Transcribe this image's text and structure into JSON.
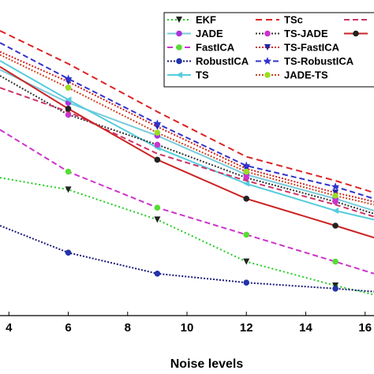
{
  "chart_data": {
    "type": "line",
    "title": "",
    "xlabel": "Noise levels",
    "ylabel": "",
    "xlim": [
      3.7,
      16.3
    ],
    "ylim": [
      0,
      1
    ],
    "x_ticks": [
      "4",
      "6",
      "8",
      "10",
      "12",
      "14",
      "16"
    ],
    "grid": false,
    "legend_position": "top-right",
    "series": [
      {
        "name": "EKF",
        "color": "#22cc22",
        "dash": "2,3",
        "marker": "tri-down",
        "marker_color": "#222222",
        "x": [
          3.7,
          6,
          9,
          12,
          15,
          16.3
        ],
        "y": [
          0.46,
          0.42,
          0.32,
          0.18,
          0.1,
          0.07
        ]
      },
      {
        "name": "JADE",
        "color": "#77ccdd",
        "dash": "",
        "marker": "circle",
        "marker_color": "#aa33dd",
        "x": [
          3.7,
          6,
          9,
          12,
          15,
          16.3
        ],
        "y": [
          0.82,
          0.71,
          0.6,
          0.47,
          0.39,
          0.35
        ]
      },
      {
        "name": "FastICA",
        "color": "#cc33cc",
        "dash": "7,4",
        "marker": "circle",
        "marker_color": "#55dd33",
        "x": [
          3.7,
          6,
          9,
          12,
          15,
          16.3
        ],
        "y": [
          0.62,
          0.48,
          0.36,
          0.27,
          0.18,
          0.14
        ]
      },
      {
        "name": "RobustICA",
        "color": "#1a1a7a",
        "dash": "2,2",
        "marker": "circle",
        "marker_color": "#2233aa",
        "x": [
          3.7,
          6,
          9,
          12,
          15,
          16.3
        ],
        "y": [
          0.3,
          0.21,
          0.14,
          0.11,
          0.09,
          0.08
        ]
      },
      {
        "name": "TS",
        "color": "#55ccdd",
        "dash": "",
        "marker": "tri-left",
        "marker_color": "#55ccdd",
        "x": [
          3.7,
          6,
          9,
          12,
          15,
          16.3
        ],
        "y": [
          0.85,
          0.72,
          0.56,
          0.44,
          0.35,
          0.32
        ]
      },
      {
        "name": "TSc",
        "color": "#dd2222",
        "dash": "8,5",
        "marker": "none",
        "marker_color": "#dd2222",
        "x": [
          3.7,
          6,
          9,
          12,
          15,
          16.3
        ],
        "y": [
          0.95,
          0.84,
          0.68,
          0.53,
          0.45,
          0.41
        ]
      },
      {
        "name": "TS-JADE",
        "color": "#333333",
        "dash": "2,2",
        "marker": "circle",
        "marker_color": "#cc33cc",
        "x": [
          3.7,
          6,
          9,
          12,
          15,
          16.3
        ],
        "y": [
          0.8,
          0.67,
          0.57,
          0.46,
          0.38,
          0.34
        ]
      },
      {
        "name": "TS-FastICA",
        "color": "#cc2222",
        "dash": "2,2",
        "marker": "tri-down",
        "marker_color": "#2222aa",
        "x": [
          3.7,
          6,
          9,
          12,
          15,
          16.3
        ],
        "y": [
          0.88,
          0.78,
          0.63,
          0.49,
          0.41,
          0.38
        ]
      },
      {
        "name": "TS-RobustICA",
        "color": "#3333cc",
        "dash": "7,4",
        "marker": "star",
        "marker_color": "#3333cc",
        "x": [
          3.7,
          6,
          9,
          12,
          15,
          16.3
        ],
        "y": [
          0.91,
          0.79,
          0.64,
          0.5,
          0.43,
          0.39
        ]
      },
      {
        "name": "JADE-TS",
        "color": "#cc4422",
        "dash": "2,2",
        "marker": "circle",
        "marker_color": "#99dd22",
        "x": [
          3.7,
          6,
          9,
          12,
          15,
          16.3
        ],
        "y": [
          0.87,
          0.76,
          0.61,
          0.48,
          0.4,
          0.37
        ]
      },
      {
        "name": "",
        "color": "#cc3366",
        "dash": "7,4",
        "marker": "none",
        "marker_color": "#cc3366",
        "x": [
          3.7,
          6,
          9,
          12,
          15,
          16.3
        ],
        "y": [
          0.76,
          0.68,
          0.54,
          0.45,
          0.37,
          0.33
        ]
      },
      {
        "name": "",
        "color": "#cc2222",
        "dash": "",
        "marker": "circle",
        "marker_color": "#222222",
        "x": [
          3.7,
          6,
          9,
          12,
          15,
          16.3
        ],
        "y": [
          0.83,
          0.69,
          0.52,
          0.39,
          0.3,
          0.26
        ]
      }
    ]
  }
}
